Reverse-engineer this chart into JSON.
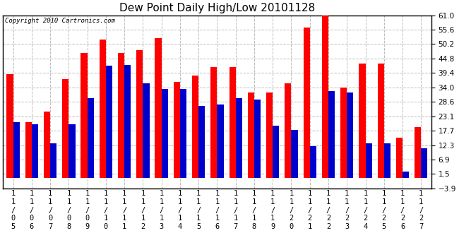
{
  "title": "Dew Point Daily High/Low 20101128",
  "copyright": "Copyright 2010 Cartronics.com",
  "dates": [
    "11/05",
    "11/06",
    "11/07",
    "11/08",
    "11/09",
    "11/10",
    "11/11",
    "11/12",
    "11/13",
    "11/14",
    "11/15",
    "11/16",
    "11/17",
    "11/18",
    "11/19",
    "11/20",
    "11/21",
    "11/22",
    "11/23",
    "11/24",
    "11/25",
    "11/26",
    "11/27"
  ],
  "highs": [
    39.0,
    21.0,
    25.0,
    37.0,
    47.0,
    52.0,
    47.0,
    48.0,
    52.5,
    36.0,
    38.5,
    41.5,
    41.5,
    32.0,
    32.0,
    35.5,
    56.5,
    63.0,
    34.0,
    43.0,
    43.0,
    15.0,
    19.0
  ],
  "lows": [
    21.0,
    20.0,
    13.0,
    20.0,
    30.0,
    42.0,
    42.5,
    35.5,
    33.5,
    33.5,
    27.0,
    27.5,
    30.0,
    29.5,
    19.5,
    18.0,
    12.0,
    32.5,
    32.0,
    13.0,
    13.0,
    2.5,
    11.0
  ],
  "ylim_min": -3.9,
  "ylim_max": 61.0,
  "yticks": [
    -3.9,
    1.5,
    6.9,
    12.3,
    17.7,
    23.1,
    28.6,
    34.0,
    39.4,
    44.8,
    50.2,
    55.6,
    61.0
  ],
  "high_color": "#ff0000",
  "low_color": "#0000cc",
  "bg_color": "#ffffff",
  "grid_color": "#bbbbbb",
  "bar_width": 0.35,
  "title_fontsize": 11,
  "tick_fontsize": 7.5,
  "copyright_fontsize": 6.5
}
